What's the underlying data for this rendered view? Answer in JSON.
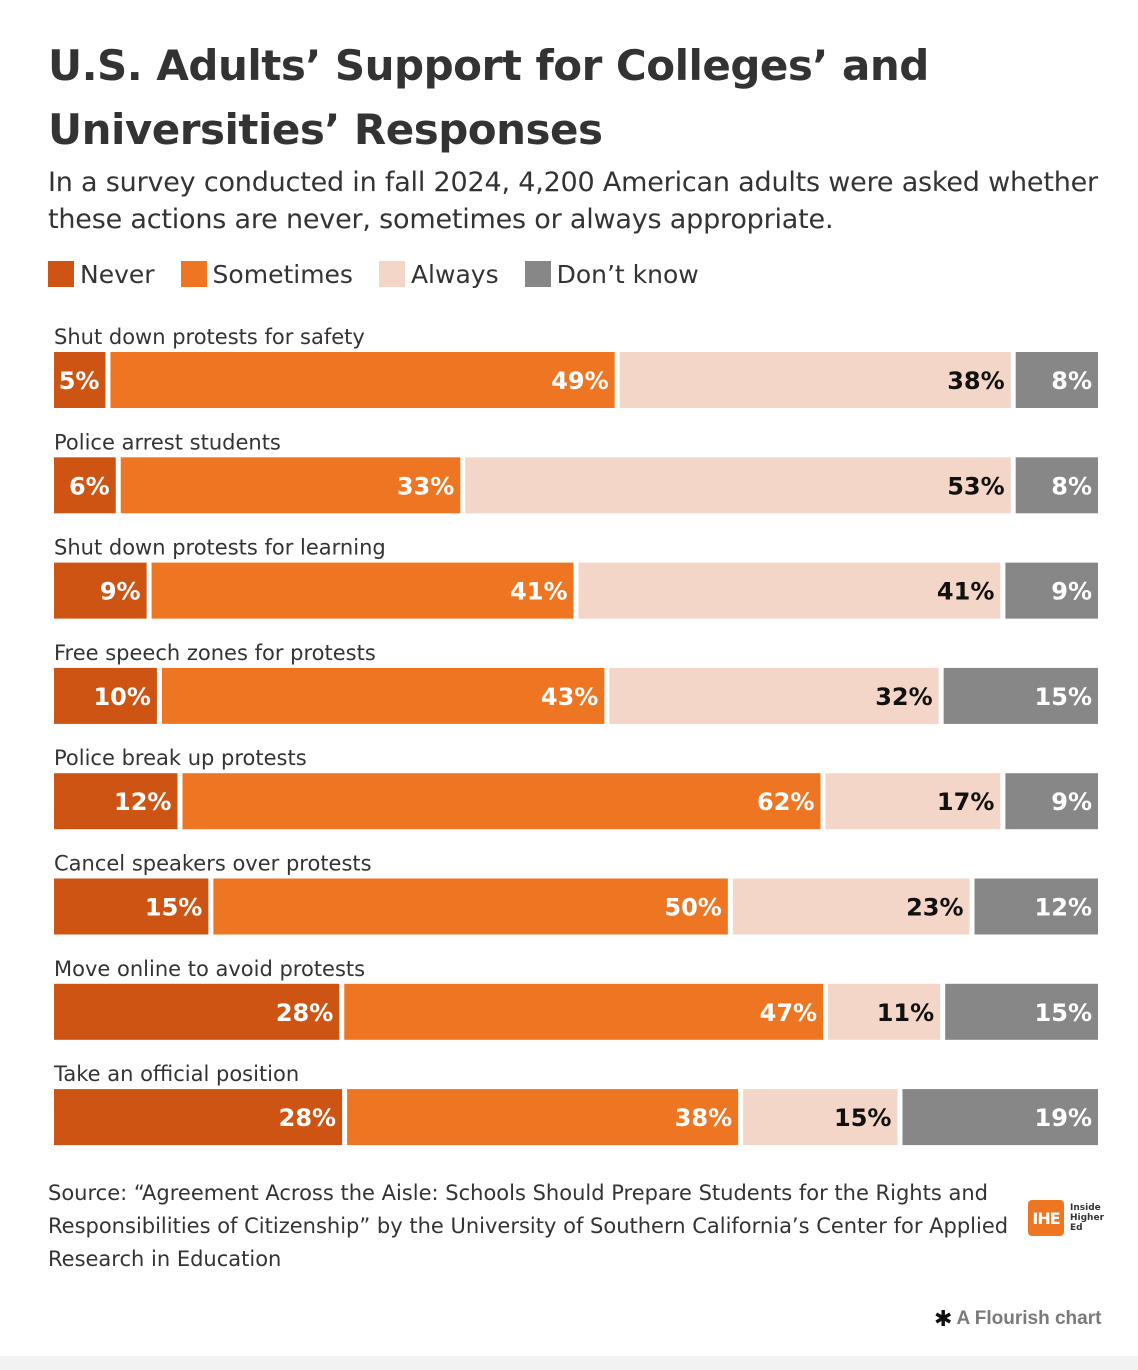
{
  "header": {
    "title": "U.S. Adults’ Support for Colleges’ and Universities’ Responses",
    "subtitle": "In a survey conducted in fall 2024, 4,200 American adults were asked whether these actions are never, sometimes or always appropriate."
  },
  "legend": [
    {
      "label": "Never",
      "color": "#cd5412"
    },
    {
      "label": "Sometimes",
      "color": "#ee7623"
    },
    {
      "label": "Always",
      "color": "#f3d6c7"
    },
    {
      "label": "Don’t know",
      "color": "#878787"
    }
  ],
  "chart_data": {
    "type": "bar",
    "orientation": "horizontal",
    "stacked": true,
    "value_format": "percent",
    "categories": [
      "Shut down protests for safety",
      "Police arrest students",
      "Shut down protests for learning",
      "Free speech zones for protests",
      "Police break up protests",
      "Cancel speakers over protests",
      "Move online to avoid protests",
      "Take an official position"
    ],
    "series": [
      {
        "name": "Never",
        "color": "#cd5412",
        "label_color": "#ffffff",
        "values": [
          5,
          6,
          9,
          10,
          12,
          15,
          28,
          28
        ]
      },
      {
        "name": "Sometimes",
        "color": "#ee7623",
        "label_color": "#ffffff",
        "values": [
          49,
          33,
          41,
          43,
          62,
          50,
          47,
          38
        ]
      },
      {
        "name": "Always",
        "color": "#f3d6c7",
        "label_color": "#111111",
        "values": [
          38,
          53,
          41,
          32,
          17,
          23,
          11,
          15
        ]
      },
      {
        "name": "Don’t know",
        "color": "#878787",
        "label_color": "#ffffff",
        "values": [
          8,
          8,
          9,
          15,
          9,
          12,
          15,
          19
        ]
      }
    ],
    "legend_position": "top-left",
    "grid": false
  },
  "footer": {
    "source": "Source: “Agreement Across the Aisle: Schools Should Prepare Students for the Rights and Responsibilities of Citizenship” by the University of Southern California’s Center for Applied Research in Education",
    "logo_badge": "IHE",
    "logo_lines": [
      "Inside",
      "Higher",
      "Ed"
    ],
    "flourish_icon": "✱",
    "flourish_text": "A Flourish chart"
  }
}
